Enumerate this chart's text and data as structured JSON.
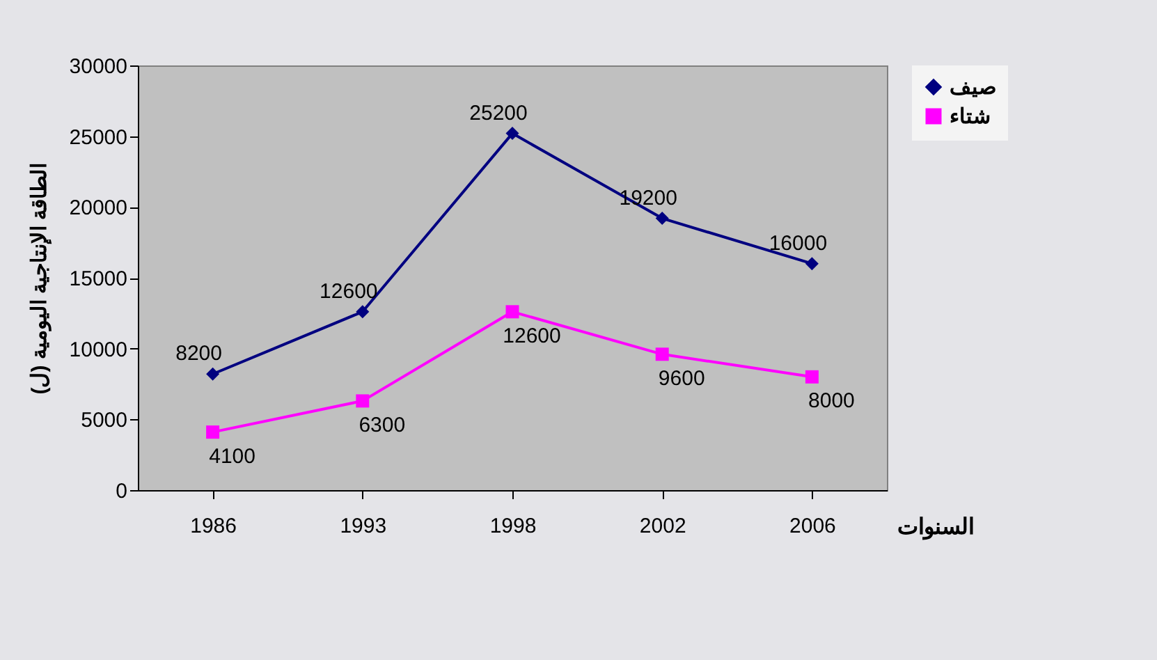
{
  "chart_data": {
    "type": "line",
    "xlabel": "السنوات",
    "ylabel": "الطاقة الإنتاجية اليومية (ل)",
    "categories": [
      "1986",
      "1993",
      "1998",
      "2002",
      "2006"
    ],
    "series": [
      {
        "name": "صيف",
        "color": "#000080",
        "marker": "diamond",
        "values": [
          8200,
          12600,
          25200,
          19200,
          16000
        ]
      },
      {
        "name": "شتاء",
        "color": "#ff00ff",
        "marker": "square",
        "values": [
          4100,
          6300,
          12600,
          9600,
          8000
        ]
      }
    ],
    "ylim": [
      0,
      30000
    ],
    "yticks": [
      0,
      5000,
      10000,
      15000,
      20000,
      25000,
      30000
    ],
    "data_labels": true,
    "grid": false,
    "legend": "top right"
  }
}
